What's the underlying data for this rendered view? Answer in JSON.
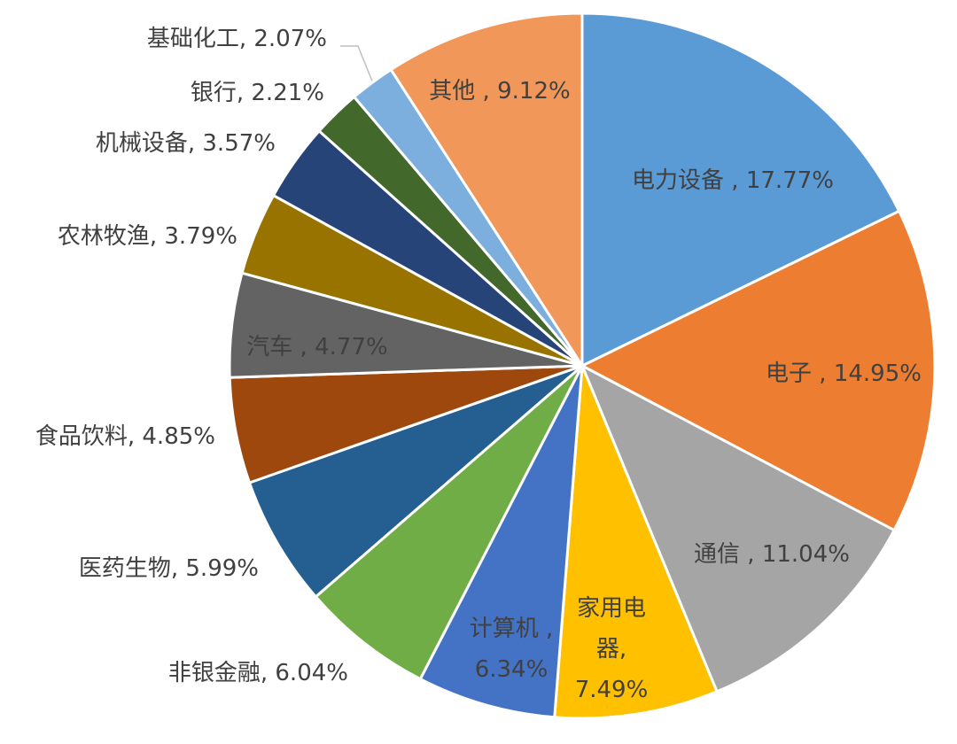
{
  "chart_data": {
    "type": "pie",
    "title": "",
    "slices": [
      {
        "label": "电力设备",
        "value": 17.77,
        "text": "电力设备  , 17.77%",
        "color": "#5b9bd5"
      },
      {
        "label": "电子",
        "value": 14.95,
        "text": "电子 , 14.95%",
        "color": "#ed7d31"
      },
      {
        "label": "通信",
        "value": 11.04,
        "text": "通信 , 11.04%",
        "color": "#a5a5a5"
      },
      {
        "label": "家用电器",
        "value": 7.49,
        "text": "家用电器, 7.49%",
        "color": "#ffc000"
      },
      {
        "label": "计算机",
        "value": 6.34,
        "text": "计算机 , 6.34%",
        "color": "#4472c4"
      },
      {
        "label": "非银金融",
        "value": 6.04,
        "text": "非银金融, 6.04%",
        "color": "#70ad47"
      },
      {
        "label": "医药生物",
        "value": 5.99,
        "text": "医药生物, 5.99%",
        "color": "#255e91"
      },
      {
        "label": "食品饮料",
        "value": 4.85,
        "text": "食品饮料, 4.85%",
        "color": "#9e480e"
      },
      {
        "label": "汽车",
        "value": 4.77,
        "text": "汽车 , 4.77%",
        "color": "#636363"
      },
      {
        "label": "农林牧渔",
        "value": 3.79,
        "text": "农林牧渔, 3.79%",
        "color": "#997300"
      },
      {
        "label": "机械设备",
        "value": 3.57,
        "text": "机械设备, 3.57%",
        "color": "#264478"
      },
      {
        "label": "银行",
        "value": 2.21,
        "text": "银行, 2.21%",
        "color": "#43682b"
      },
      {
        "label": "基础化工",
        "value": 2.07,
        "text": "基础化工, 2.07%",
        "color": "#7cafdd"
      },
      {
        "label": "其他",
        "value": 9.12,
        "text": "其他 , 9.12%",
        "color": "#f1975a"
      }
    ]
  }
}
